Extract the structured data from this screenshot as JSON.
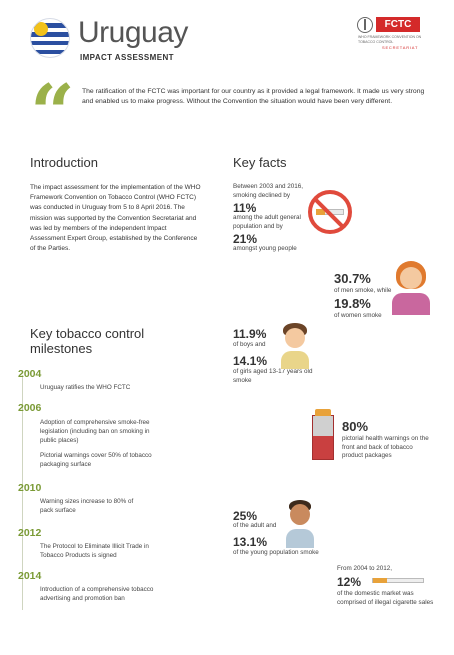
{
  "header": {
    "title": "Uruguay",
    "subtitle": "IMPACT ASSESSMENT",
    "logo_text": "FCTC",
    "logo_subtext": "WHO FRAMEWORK CONVENTION ON TOBACCO CONTROL",
    "logo_tag": "SECRETARIAT",
    "colors": {
      "accent": "#9bb14a",
      "year": "#7a9a35",
      "red": "#d42a2a",
      "flag_blue": "#2b4fa0"
    }
  },
  "quote": {
    "icon": "quote-icon",
    "text": "The ratification of the FCTC was important for our country as it provided a legal framework. It made us very strong and enabled us to make progress. Without the Convention the situation would have been very different."
  },
  "introduction": {
    "heading": "Introduction",
    "text": "The impact assessment for the implementation of the WHO Framework Convention on Tobacco Control (WHO FCTC) was conducted in Uruguay from 5 to 8 April 2016. The mission was supported by the Convention Secretariat and was led by members of the independent Impact Assessment Expert Group, established by the Conference of the Parties."
  },
  "milestones": {
    "heading_line1": "Key tobacco control",
    "heading_line2": "milestones",
    "items": [
      {
        "year": "2004",
        "texts": [
          "Uruguay ratifies the WHO FCTC"
        ]
      },
      {
        "year": "2006",
        "texts": [
          "Adoption of comprehensive smoke-free legislation (including ban on smoking in public places)",
          "Pictorial warnings cover 50% of tobacco packaging surface"
        ]
      },
      {
        "year": "2010",
        "texts": [
          "Warning sizes increase to 80% of pack surface"
        ]
      },
      {
        "year": "2012",
        "texts": [
          "The Protocol to Eliminate Illicit Trade in Tobacco Products is signed"
        ]
      },
      {
        "year": "2014",
        "texts": [
          "Introduction of a comprehensive tobacco advertising and promotion ban"
        ]
      }
    ]
  },
  "key_facts": {
    "heading": "Key facts",
    "fact1": {
      "pre": "Between 2003 and 2016, smoking declined by",
      "v1": "11%",
      "mid": "among the adult general population and by",
      "v2": "21%",
      "post": "amongst young people",
      "icon": "no-smoking-icon"
    },
    "fact2": {
      "v1": "30.7%",
      "mid": "of men smoke, while",
      "v2": "19.8%",
      "post": "of women smoke",
      "icon": "woman-icon"
    },
    "fact3": {
      "v1": "11.9%",
      "mid": "of boys and",
      "v2": "14.1%",
      "post": "of girls aged 13-17 years old smoke",
      "icon": "boy-icon"
    },
    "fact4": {
      "v1": "80%",
      "post": "pictorial health warnings on the front and back of tobacco product packages",
      "icon": "cigarette-pack-icon"
    },
    "fact5": {
      "v1": "25%",
      "mid": "of the adult and",
      "v2": "13.1%",
      "post": "of the young population smoke",
      "icon": "man-icon"
    },
    "fact6": {
      "pre": "From 2004 to 2012,",
      "v1": "12%",
      "post": "of the domestic market was comprised of illegal cigarette sales",
      "icon": "cigarette-icon"
    }
  }
}
